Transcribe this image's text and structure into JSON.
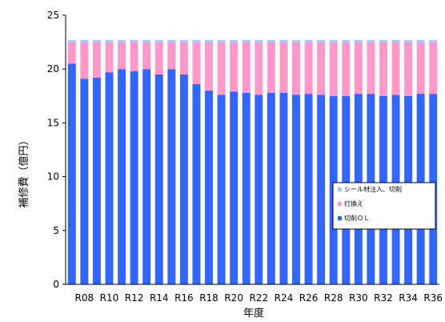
{
  "chart_data": {
    "type": "bar",
    "stacked": true,
    "categories": [
      "R07",
      "R08",
      "R09",
      "R10",
      "R11",
      "R12",
      "R13",
      "R14",
      "R15",
      "R16",
      "R17",
      "R18",
      "R19",
      "R20",
      "R21",
      "R22",
      "R23",
      "R24",
      "R25",
      "R26",
      "R27",
      "R28",
      "R29",
      "R30",
      "R31",
      "R32",
      "R33",
      "R34",
      "R35",
      "R36"
    ],
    "visible_x_tick_labels": [
      "R08",
      "R10",
      "R12",
      "R14",
      "R16",
      "R18",
      "R20",
      "R22",
      "R24",
      "R26",
      "R28",
      "R30",
      "R32",
      "R34",
      "R36"
    ],
    "series": [
      {
        "name": "切削ＯＬ",
        "color": "#3366ff",
        "values": [
          20.5,
          19.1,
          19.2,
          19.7,
          20.0,
          19.8,
          20.0,
          19.5,
          20.0,
          19.5,
          18.6,
          18.0,
          17.6,
          17.9,
          17.8,
          17.6,
          17.8,
          17.8,
          17.6,
          17.7,
          17.6,
          17.5,
          17.5,
          17.7,
          17.7,
          17.5,
          17.6,
          17.5,
          17.7,
          17.7
        ]
      },
      {
        "name": "打換え",
        "color": "#ff99cc",
        "values": [
          2.0,
          3.4,
          3.3,
          2.8,
          2.5,
          2.7,
          2.5,
          3.0,
          2.5,
          3.0,
          3.9,
          4.5,
          4.9,
          4.6,
          4.7,
          4.9,
          4.7,
          4.7,
          4.9,
          4.8,
          4.9,
          5.0,
          5.0,
          4.8,
          4.8,
          5.0,
          4.9,
          5.0,
          4.8,
          4.8
        ]
      },
      {
        "name": "シール材注入、切削",
        "color": "#99ccff",
        "values": [
          0.2,
          0.2,
          0.2,
          0.2,
          0.2,
          0.2,
          0.2,
          0.2,
          0.2,
          0.2,
          0.2,
          0.2,
          0.2,
          0.2,
          0.2,
          0.2,
          0.2,
          0.2,
          0.2,
          0.2,
          0.2,
          0.2,
          0.2,
          0.2,
          0.2,
          0.2,
          0.2,
          0.2,
          0.2,
          0.2
        ]
      }
    ],
    "legend_order": [
      "シール材注入、切削",
      "打換え",
      "切削ＯＬ"
    ],
    "xlabel": "年度",
    "ylabel": "補修費（億円）",
    "ylim": [
      0,
      25
    ],
    "yticks": [
      0,
      5,
      10,
      15,
      20,
      25
    ],
    "grid": false,
    "legend_position": "right-middle"
  }
}
